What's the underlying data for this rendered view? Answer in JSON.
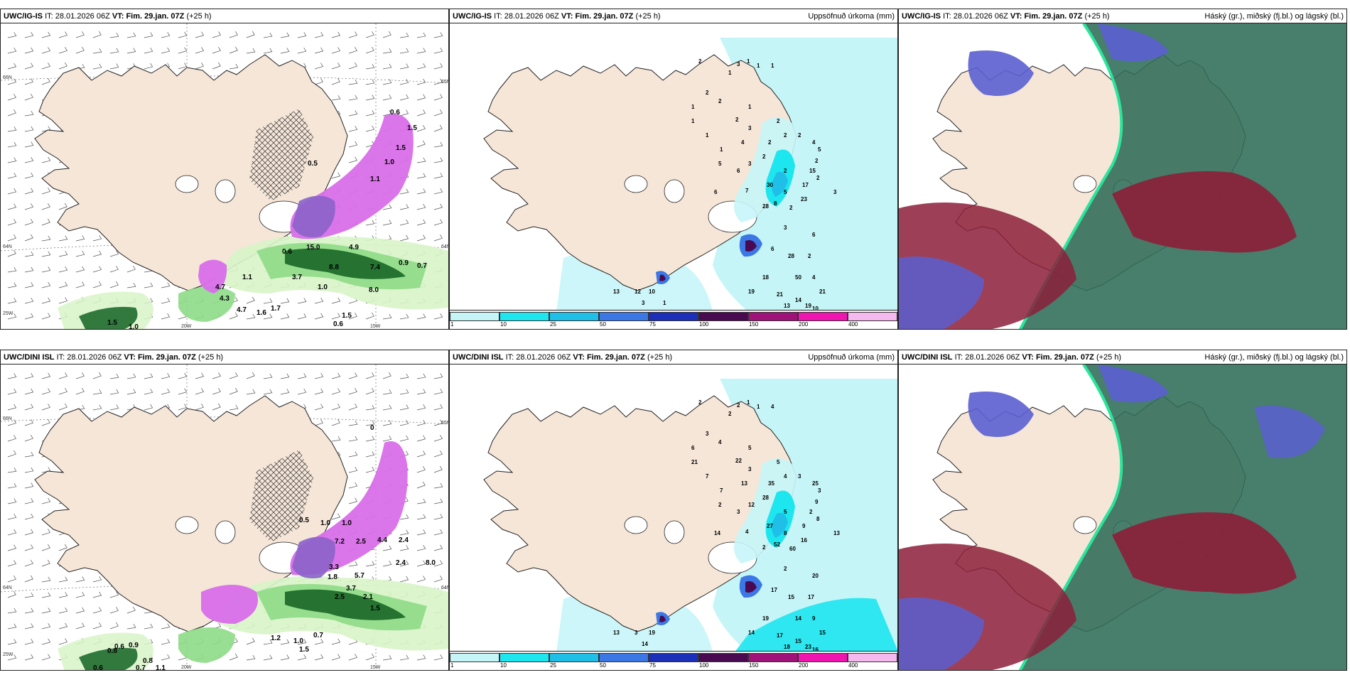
{
  "panels": [
    {
      "id": "top-left",
      "model": "UWC/IG-IS",
      "it_prefix": "IT:",
      "it_value": "28.01.2026 06Z",
      "vt_prefix": "VT:",
      "vt_value": "Fim. 29.jan. 07Z",
      "lead": "(+25 h)",
      "right_title": "",
      "axis_labels": [
        "66N",
        "64N",
        "65N",
        "64N",
        "20W",
        "15W",
        "25W"
      ],
      "precip_labels": [
        "0.6",
        "1.5",
        "1.5",
        "1.0",
        "0.5",
        "1.1",
        "15.0",
        "4.9",
        "0.6",
        "8.8",
        "7.4",
        "0.9",
        "0.7",
        "1.1",
        "3.7",
        "1.0",
        "8.0",
        "4.7",
        "4.3",
        "4.7",
        "1.6",
        "1.7",
        "1.5",
        "0.6",
        "1.5",
        "1.0"
      ]
    },
    {
      "id": "top-middle",
      "model": "UWC/IG-IS",
      "it_prefix": "IT:",
      "it_value": "28.01.2026 06Z",
      "vt_prefix": "VT:",
      "vt_value": "Fim. 29.jan. 07Z",
      "lead": "(+25 h)",
      "right_title": "Uppsöfnuð úrkoma (mm)",
      "colorbar": [
        "1",
        "10",
        "25",
        "50",
        "75",
        "100",
        "150",
        "200",
        "400"
      ],
      "precip_labels": [
        "2",
        "1",
        "3",
        "1",
        "1",
        "1",
        "2",
        "2",
        "1",
        "1",
        "1",
        "2",
        "3",
        "2",
        "1",
        "4",
        "2",
        "2",
        "5",
        "6",
        "2",
        "1",
        "3",
        "2",
        "4",
        "5",
        "2",
        "2",
        "15",
        "2",
        "3",
        "6",
        "30",
        "5",
        "17",
        "7",
        "8",
        "2",
        "23",
        "28",
        "3",
        "6",
        "28",
        "2",
        "6",
        "18",
        "50",
        "4",
        "21",
        "19",
        "21",
        "14",
        "13",
        "19",
        "10",
        "13",
        "12",
        "10",
        "3",
        "1"
      ]
    },
    {
      "id": "top-right",
      "model": "UWC/IG-IS",
      "it_prefix": "IT:",
      "it_value": "28.01.2026 06Z",
      "vt_prefix": "VT:",
      "vt_value": "Fim. 29.jan. 07Z",
      "lead": "(+25 h)",
      "right_title": "Háský (gr.), miðský (fj.bl.) og lágský (bl.)"
    },
    {
      "id": "bottom-left",
      "model": "UWC/DINI ISL",
      "it_prefix": "IT:",
      "it_value": "28.01.2026 06Z",
      "vt_prefix": "VT:",
      "vt_value": "Fim. 29.jan. 07Z",
      "lead": "(+25 h)",
      "right_title": "",
      "axis_labels": [
        "66N",
        "64N",
        "65N",
        "64N",
        "20W",
        "15W",
        "25W"
      ],
      "precip_labels": [
        "0",
        "0.5",
        "1.0",
        "1.0",
        "2.5",
        "4.4",
        "3.3",
        "5.7",
        "2.4",
        "8.0",
        "7.2",
        "2.4",
        "1.8",
        "2.5",
        "3.7",
        "2.1",
        "1.5",
        "0.6",
        "0.9",
        "0.8",
        "0.6",
        "0.8",
        "0.7",
        "1.1",
        "1.2",
        "1.0",
        "0.7",
        "1.5"
      ]
    },
    {
      "id": "bottom-middle",
      "model": "UWC/DINI ISL",
      "it_prefix": "IT:",
      "it_value": "28.01.2026 06Z",
      "vt_prefix": "VT:",
      "vt_value": "Fim. 29.jan. 07Z",
      "lead": "(+25 h)",
      "right_title": "Uppsöfnuð úrkoma (mm)",
      "colorbar": [
        "1",
        "10",
        "25",
        "50",
        "75",
        "100",
        "150",
        "200",
        "400"
      ],
      "precip_labels": [
        "2",
        "2",
        "2",
        "1",
        "1",
        "4",
        "3",
        "4",
        "6",
        "5",
        "21",
        "22",
        "3",
        "5",
        "7",
        "13",
        "35",
        "4",
        "2",
        "3",
        "3",
        "7",
        "12",
        "28",
        "25",
        "3",
        "9",
        "5",
        "2",
        "8",
        "13",
        "14",
        "27",
        "8",
        "9",
        "4",
        "52",
        "60",
        "16",
        "2",
        "2",
        "17",
        "15",
        "17",
        "20",
        "19",
        "14",
        "9",
        "15",
        "14",
        "17",
        "15",
        "18",
        "23",
        "16",
        "13",
        "3",
        "19",
        "14"
      ]
    },
    {
      "id": "bottom-right",
      "model": "UWC/DINI ISL",
      "it_prefix": "IT:",
      "it_value": "28.01.2026 06Z",
      "vt_prefix": "VT:",
      "vt_value": "Fim. 29.jan. 07Z",
      "lead": "(+25 h)",
      "right_title": "Háský (gr.), miðský (fj.bl.) og lágský (bl.)"
    }
  ],
  "colors": {
    "land": "#f5e6d8",
    "coast": "#222222",
    "precip_1": "#c6f5f8",
    "precip_10": "#1de6ee",
    "precip_25": "#1fbfe8",
    "precip_50": "#3c77e6",
    "precip_75": "#1c2fb8",
    "precip_100": "#4a0a52",
    "precip_150": "#9e1279",
    "precip_200": "#f015b0",
    "precip_400": "#f6b9ef",
    "snow_light": "#d8f4c8",
    "snow_mid": "#8edc87",
    "snow_dark": "#1f6b2c",
    "magenta": "#d86ee9",
    "cloud_high": "#2f6c58",
    "cloud_mid": "#8c1f3a",
    "cloud_low": "#5b5fd0"
  }
}
